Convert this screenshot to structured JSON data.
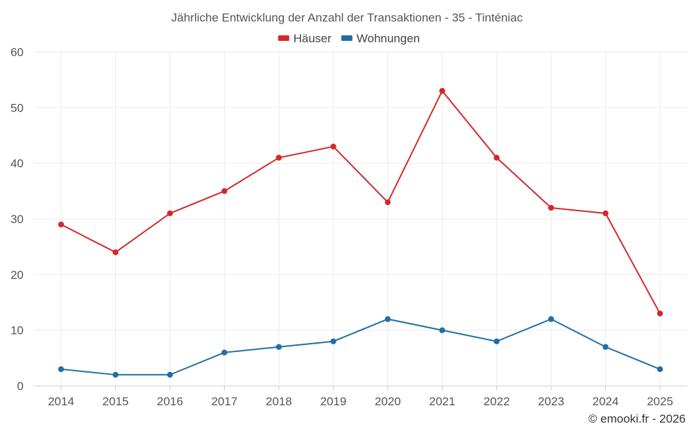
{
  "chart_data": {
    "type": "line",
    "title": "Jährliche Entwicklung der Anzahl der Transaktionen - 35 - Tinténiac",
    "categories": [
      "2014",
      "2015",
      "2016",
      "2017",
      "2018",
      "2019",
      "2020",
      "2021",
      "2022",
      "2023",
      "2024",
      "2025"
    ],
    "series": [
      {
        "name": "Häuser",
        "color": "#d62728",
        "values": [
          29,
          24,
          31,
          35,
          41,
          43,
          33,
          53,
          41,
          32,
          31,
          13
        ]
      },
      {
        "name": "Wohnungen",
        "color": "#1f6fa5",
        "values": [
          3,
          2,
          2,
          6,
          7,
          8,
          12,
          10,
          8,
          12,
          7,
          3
        ]
      }
    ],
    "ylim": [
      0,
      60
    ],
    "yticks": [
      0,
      10,
      20,
      30,
      40,
      50,
      60
    ],
    "xlabel": "",
    "ylabel": "",
    "grid": true,
    "legend": "top-center"
  },
  "credit": "© emooki.fr - 2026"
}
